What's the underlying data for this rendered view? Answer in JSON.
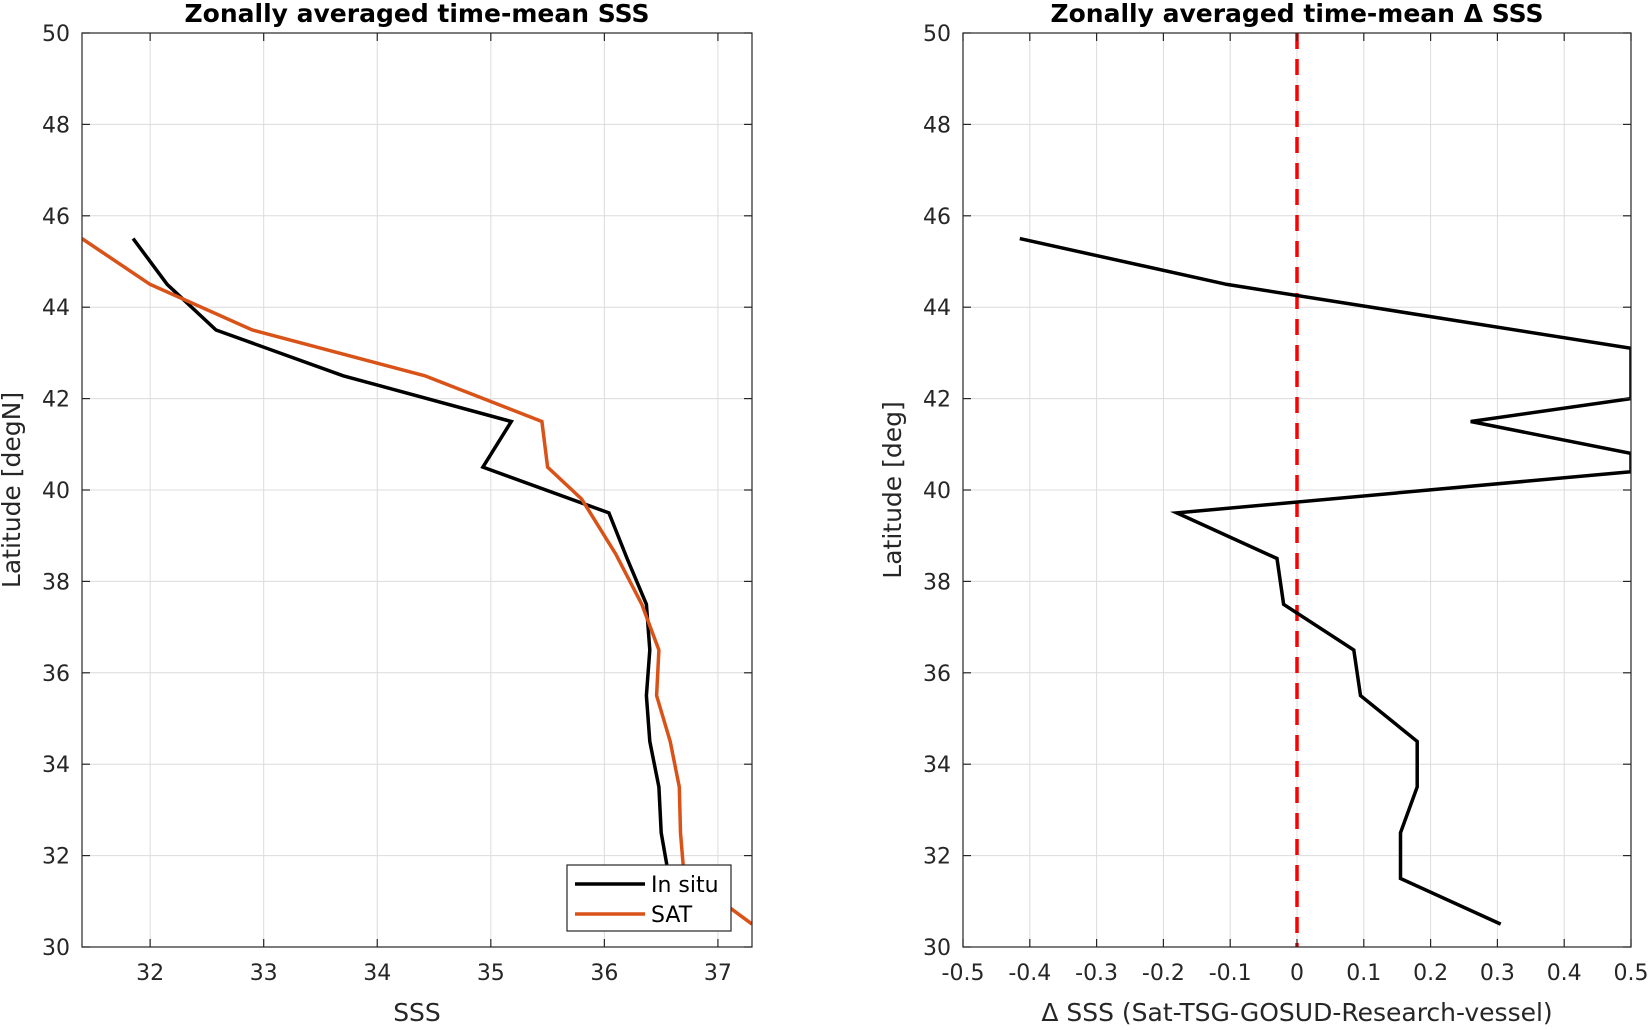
{
  "chart_data": [
    {
      "type": "line",
      "title": "Zonally averaged time-mean SSS",
      "xlabel": "SSS",
      "ylabel": "Latitude [degN]",
      "xlim": [
        31.4,
        37.3
      ],
      "ylim": [
        30,
        50
      ],
      "xticks": [
        32,
        33,
        34,
        35,
        36,
        37
      ],
      "yticks": [
        30,
        32,
        34,
        36,
        38,
        40,
        42,
        44,
        46,
        48,
        50
      ],
      "grid": true,
      "legend": "bottom-right",
      "series": [
        {
          "name": "In situ",
          "color": "#000000",
          "x": [
            31.85,
            32.15,
            32.58,
            33.7,
            35.18,
            34.93,
            36.04,
            36.2,
            36.37,
            36.4,
            36.37,
            36.4,
            36.48,
            36.5,
            36.55
          ],
          "y": [
            45.5,
            44.5,
            43.5,
            42.5,
            41.5,
            40.5,
            39.5,
            38.5,
            37.5,
            36.5,
            35.5,
            34.5,
            33.5,
            32.5,
            31.8
          ]
        },
        {
          "name": "SAT",
          "color": "#D95319",
          "x": [
            31.4,
            32.0,
            32.9,
            34.42,
            35.45,
            35.5,
            35.8,
            36.1,
            36.33,
            36.48,
            36.46,
            36.58,
            36.66,
            36.67,
            36.7,
            37.3
          ],
          "y": [
            45.5,
            44.5,
            43.5,
            42.5,
            41.5,
            40.5,
            39.8,
            38.6,
            37.5,
            36.5,
            35.5,
            34.5,
            33.5,
            32.5,
            31.6,
            30.5
          ]
        }
      ]
    },
    {
      "type": "line",
      "title": "Zonally averaged time-mean Δ SSS",
      "xlabel": "Δ SSS (Sat-TSG-GOSUD-Research-vessel)",
      "ylabel": "Latitude [deg]",
      "xlim": [
        -0.5,
        0.5
      ],
      "ylim": [
        30,
        50
      ],
      "xticks": [
        -0.5,
        -0.4,
        -0.3,
        -0.2,
        -0.1,
        0,
        0.1,
        0.2,
        0.3,
        0.4,
        0.5
      ],
      "xtick_labels": [
        "-0.5",
        "-0.4",
        "-0.3",
        "-0.2",
        "-0.1",
        "0",
        "0.1",
        "0.2",
        "0.3",
        "0.4",
        "0.5"
      ],
      "yticks": [
        30,
        32,
        34,
        36,
        38,
        40,
        42,
        44,
        46,
        48,
        50
      ],
      "grid": true,
      "reference_line": {
        "x": 0,
        "color": "#FF0000",
        "style": "dashed"
      },
      "series": [
        {
          "color": "#000000",
          "x": [
            -0.415,
            -0.105,
            0.5,
            0.5,
            0.26,
            0.5,
            0.5,
            -0.18,
            -0.03,
            -0.02,
            0.085,
            0.095,
            0.18,
            0.18,
            0.155,
            0.155,
            0.305
          ],
          "y": [
            45.5,
            44.5,
            43.1,
            42.0,
            41.5,
            40.8,
            40.4,
            39.5,
            38.5,
            37.5,
            36.5,
            35.5,
            34.5,
            33.5,
            32.5,
            31.5,
            30.5
          ]
        }
      ]
    }
  ]
}
